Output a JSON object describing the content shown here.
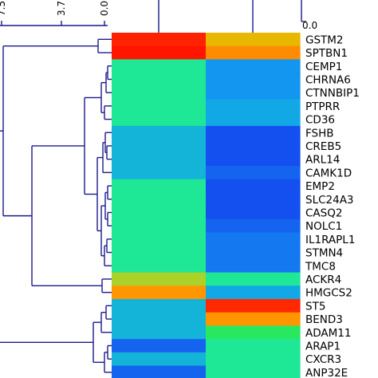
{
  "chart_data": {
    "type": "heatmap",
    "columns": 2,
    "rows": [
      "GSTM2",
      "SPTBN1",
      "CEMP1",
      "CHRNA6",
      "CTNNBIP1",
      "PTPRR",
      "CD36",
      "FSHB",
      "CREB5",
      "ARL14",
      "CAMK1D",
      "EMP2",
      "SLC24A3",
      "CASQ2",
      "NOLC1",
      "IL1RAPL1",
      "STMN4",
      "TMC8",
      "ACKR4",
      "HMGCS2",
      "ST5",
      "BEND3",
      "ADAM11",
      "ARAP1",
      "CXCR3",
      "ANP32E"
    ],
    "cells": [
      [
        "#ff2200",
        "#e8b800"
      ],
      [
        "#ff1500",
        "#ff8c00"
      ],
      [
        "#1ee896",
        "#1296f0"
      ],
      [
        "#1ee896",
        "#1296f0"
      ],
      [
        "#1ee896",
        "#1296f0"
      ],
      [
        "#1ee896",
        "#12a8e6"
      ],
      [
        "#1ee896",
        "#12a8e6"
      ],
      [
        "#14b4d8",
        "#1450f0"
      ],
      [
        "#14b4d8",
        "#1450f0"
      ],
      [
        "#14b4d8",
        "#1450f0"
      ],
      [
        "#14b4d8",
        "#1464f0"
      ],
      [
        "#1ee896",
        "#1450f0"
      ],
      [
        "#1ee896",
        "#1450f0"
      ],
      [
        "#1ee896",
        "#1450f0"
      ],
      [
        "#1ee896",
        "#1464f0"
      ],
      [
        "#1ee896",
        "#1478f0"
      ],
      [
        "#1ee896",
        "#1478f0"
      ],
      [
        "#1ee896",
        "#1478f0"
      ],
      [
        "#aad228",
        "#1ee896"
      ],
      [
        "#ff9600",
        "#12a8e6"
      ],
      [
        "#14b4d8",
        "#ff2800"
      ],
      [
        "#14b4d8",
        "#ff9600"
      ],
      [
        "#14b4d8",
        "#28e860"
      ],
      [
        "#1464f0",
        "#1ee896"
      ],
      [
        "#14b4d8",
        "#1ee896"
      ],
      [
        "#1464f0",
        "#1ee896"
      ]
    ],
    "row_tree_ticks": [
      "7.5",
      "3.7",
      "0.0"
    ],
    "col_tree_tick": "0.0",
    "tree_color": "#1a1a8c"
  }
}
